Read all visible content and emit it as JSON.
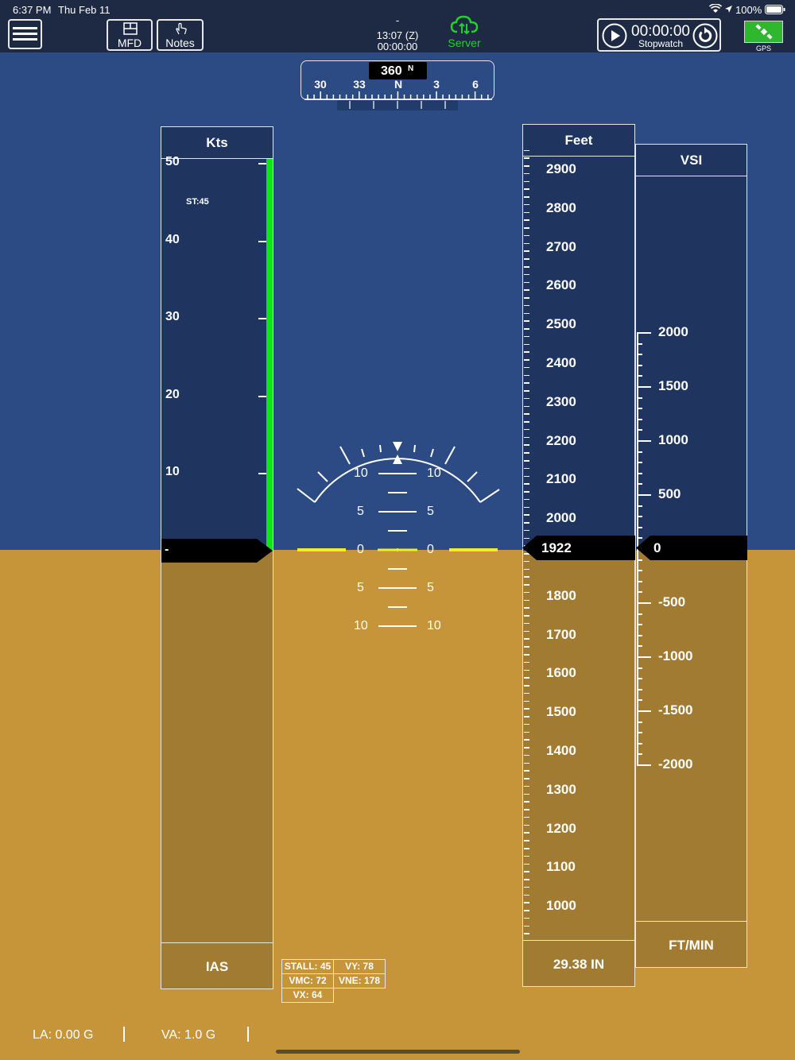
{
  "status_bar": {
    "time": "6:37 PM",
    "date": "Thu Feb 11",
    "battery": "100%"
  },
  "toolbar": {
    "menu_icon": "hamburger-icon",
    "mfd_label": "MFD",
    "notes_label": "Notes",
    "clock_dash": "-",
    "zulu_time": "13:07 (Z)",
    "elapsed": "00:00:00",
    "server_label": "Server",
    "server_color": "#22d22a",
    "stopwatch_time": "00:00:00",
    "stopwatch_label": "Stopwatch",
    "gps_label": "GPS",
    "gps_color": "#2fb82f"
  },
  "heading": {
    "value": "360",
    "cardinal": "N",
    "scale": [
      "30",
      "33",
      "N",
      "3",
      "6"
    ]
  },
  "airspeed": {
    "header": "Kts",
    "footer": "IAS",
    "labels": [
      "50",
      "40",
      "30",
      "20",
      "10"
    ],
    "stall_marker": "ST:45",
    "current": "-",
    "band_color": "#11e411"
  },
  "attitude": {
    "pitch_labels": [
      "10",
      "5",
      "0",
      "5",
      "10"
    ]
  },
  "altitude": {
    "header": "Feet",
    "labels": [
      "2900",
      "2800",
      "2700",
      "2600",
      "2500",
      "2400",
      "2300",
      "2200",
      "2100",
      "2000",
      "1800",
      "1700",
      "1600",
      "1500",
      "1400",
      "1300",
      "1200",
      "1100",
      "1000"
    ],
    "current": "1922",
    "baro": "29.38 IN"
  },
  "vsi": {
    "header": "VSI",
    "labels": [
      "2000",
      "1500",
      "1000",
      "500",
      "-500",
      "-1000",
      "-1500",
      "-2000"
    ],
    "current": "0",
    "footer": "FT/MIN"
  },
  "vspeeds": {
    "stall": "STALL: 45",
    "vy": "VY: 78",
    "vmc": "VMC: 72",
    "vne": "VNE: 178",
    "vx": "VX: 64"
  },
  "bottom": {
    "la": "LA: 0.00 G",
    "va": "VA: 1.0 G"
  }
}
